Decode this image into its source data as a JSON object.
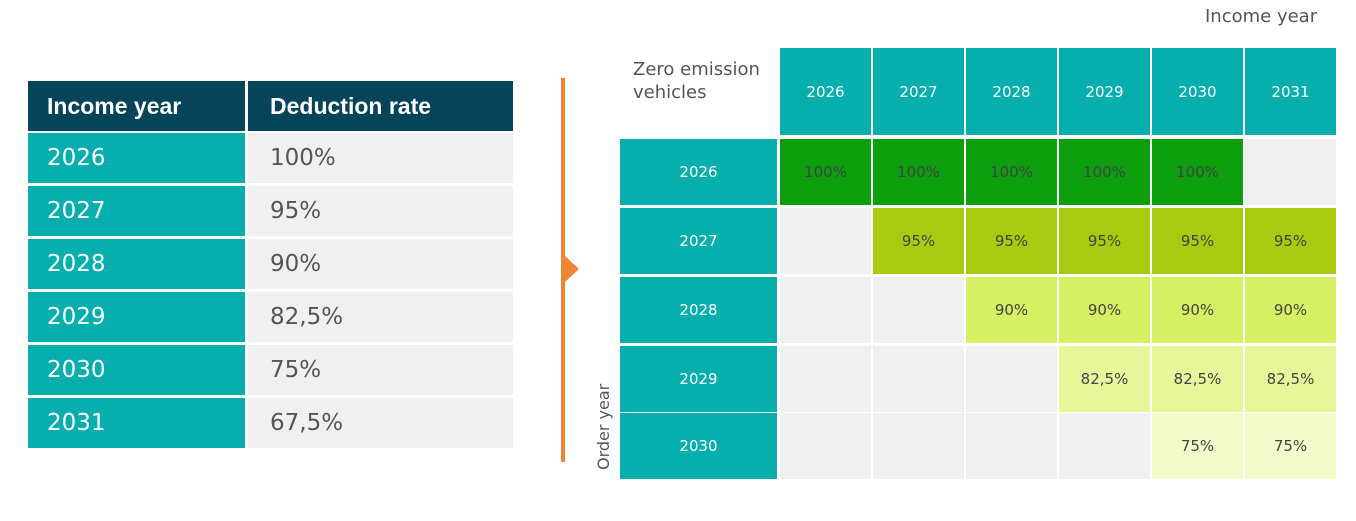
{
  "deduction_table": {
    "headers": [
      "Income year",
      "Deduction rate"
    ],
    "rows": [
      {
        "year": "2026",
        "rate": "100%"
      },
      {
        "year": "2027",
        "rate": "95%"
      },
      {
        "year": "2028",
        "rate": "90%"
      },
      {
        "year": "2029",
        "rate": "82,5%"
      },
      {
        "year": "2030",
        "rate": "75%"
      },
      {
        "year": "2031",
        "rate": "67,5%"
      }
    ]
  },
  "matrix": {
    "title": "Income year",
    "corner_label": "Zero emission vehicles",
    "row_axis_label": "Order year",
    "income_years": [
      "2026",
      "2027",
      "2028",
      "2029",
      "2030",
      "2031"
    ],
    "order_years": [
      "2026",
      "2027",
      "2028",
      "2029",
      "2030"
    ],
    "rows": [
      [
        "100%",
        "100%",
        "100%",
        "100%",
        "100%",
        ""
      ],
      [
        "",
        "95%",
        "95%",
        "95%",
        "95%",
        "95%"
      ],
      [
        "",
        "",
        "90%",
        "90%",
        "90%",
        "90%"
      ],
      [
        "",
        "",
        "",
        "82,5%",
        "82,5%",
        "82,5%"
      ],
      [
        "",
        "",
        "",
        "",
        "75%",
        "75%"
      ]
    ],
    "row_colors": [
      "#0c9e0c",
      "#a8cb10",
      "#d5f062",
      "#e5f799",
      "#f1fac8"
    ],
    "empty_cell_color": "#f0f0f0",
    "header_color": "#07aeae",
    "bracket_color": "#f08634"
  }
}
